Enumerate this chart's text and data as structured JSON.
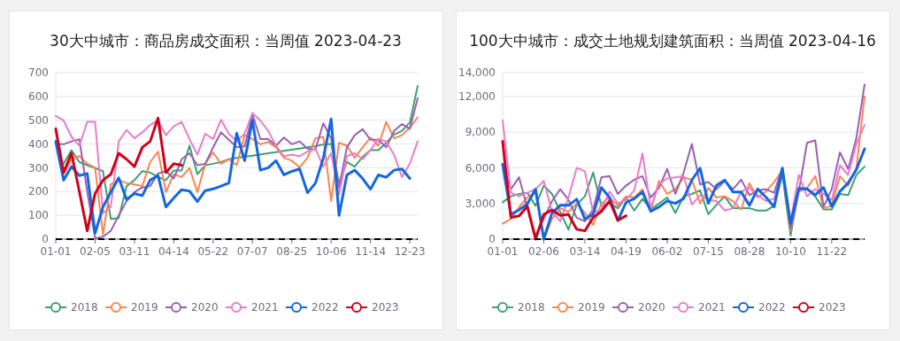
{
  "chart_data": [
    {
      "type": "line",
      "title": "30大中城市：商品房成交面积：当周值 2023-04-23",
      "categories": [
        "01-01",
        null,
        null,
        null,
        null,
        "02-05",
        null,
        null,
        null,
        null,
        "03-11",
        null,
        null,
        null,
        null,
        "04-14",
        null,
        null,
        null,
        null,
        "05-22",
        null,
        null,
        null,
        null,
        "07-07",
        null,
        null,
        null,
        null,
        "08-25",
        null,
        null,
        null,
        null,
        "10-06",
        null,
        null,
        null,
        null,
        "11-14",
        null,
        null,
        null,
        null,
        "12-23",
        null
      ],
      "ylim": [
        0,
        700
      ],
      "yticks": [
        0,
        100,
        200,
        300,
        400,
        500,
        600,
        700
      ],
      "grid": "y",
      "legend": "bottom",
      "ref_lines": [
        {
          "axis": "y",
          "value": 0,
          "color": "#000000",
          "line_style": "dashed"
        }
      ],
      "series": [
        {
          "name": "2018",
          "color": "#3ba272",
          "values": [
            null,
            317,
            374,
            324,
            311,
            299,
            286,
            85,
            88,
            223,
            248,
            286,
            280,
            261,
            248,
            289,
            289,
            393,
            273,
            311,
            317,
            324,
            336,
            342,
            346,
            351,
            356,
            361,
            366,
            371,
            376,
            381,
            386,
            391,
            398,
            400,
            236,
            324,
            305,
            346,
            374,
            374,
            405,
            440,
            455,
            490,
            644
          ]
        },
        {
          "name": "2019",
          "color": "#fc8452",
          "values": [
            null,
            273,
            336,
            349,
            317,
            300,
            20,
            230,
            248,
            236,
            230,
            223,
            324,
            368,
            198,
            273,
            261,
            299,
            198,
            317,
            365,
            317,
            336,
            311,
            437,
            420,
            399,
            409,
            386,
            342,
            330,
            302,
            342,
            424,
            430,
            160,
            405,
            393,
            342,
            386,
            427,
            393,
            493,
            424,
            437,
            468,
            512
          ]
        },
        {
          "name": "2020",
          "color": "#9a60b4",
          "values": [
            399,
            399,
            411,
            420,
            200,
            4,
            10,
            35,
            100,
            160,
            198,
            217,
            223,
            276,
            286,
            255,
            336,
            361,
            311,
            317,
            386,
            449,
            418,
            386,
            390,
            524,
            421,
            421,
            393,
            427,
            399,
            411,
            380,
            376,
            487,
            424,
            217,
            386,
            437,
            462,
            418,
            418,
            386,
            455,
            484,
            464,
            593
          ]
        },
        {
          "name": "2021",
          "color": "#ea7ccc",
          "values": [
            518,
            499,
            430,
            393,
            493,
            493,
            110,
            135,
            411,
            459,
            424,
            449,
            480,
            499,
            437,
            474,
            493,
            420,
            355,
            443,
            421,
            502,
            443,
            411,
            443,
            530,
            499,
            455,
            393,
            349,
            355,
            349,
            368,
            380,
            305,
            361,
            186,
            349,
            361,
            336,
            374,
            421,
            411,
            355,
            261,
            317,
            411
          ]
        },
        {
          "name": "2022",
          "color": "#1566e0",
          "values": [
            411,
            248,
            305,
            267,
            276,
            25,
            135,
            198,
            258,
            167,
            192,
            183,
            248,
            267,
            135,
            173,
            208,
            202,
            158,
            204,
            211,
            223,
            236,
            445,
            330,
            500,
            290,
            300,
            330,
            270,
            285,
            295,
            195,
            235,
            340,
            505,
            100,
            270,
            290,
            255,
            210,
            270,
            260,
            290,
            295,
            255,
            null
          ]
        },
        {
          "name": "2023",
          "color": "#d0021b",
          "values": [
            464,
            280,
            361,
            200,
            35,
            192,
            248,
            273,
            361,
            336,
            305,
            386,
            411,
            509,
            280,
            317,
            311,
            null,
            null,
            null,
            null,
            null,
            null,
            null,
            null,
            null,
            null,
            null,
            null,
            null,
            null,
            null,
            null,
            null,
            null,
            null,
            null,
            null,
            null,
            null,
            null,
            null,
            null,
            null,
            null,
            null,
            null
          ]
        }
      ]
    },
    {
      "type": "line",
      "title": "100大中城市：成交土地规划建筑面积：当周值 2023-04-16",
      "categories": [
        "01-01",
        null,
        null,
        null,
        null,
        "02-06",
        null,
        null,
        null,
        null,
        "03-14",
        null,
        null,
        null,
        null,
        "04-19",
        null,
        null,
        null,
        null,
        "06-02",
        null,
        null,
        null,
        null,
        "07-15",
        null,
        null,
        null,
        null,
        "08-28",
        null,
        null,
        null,
        null,
        "10-10",
        null,
        null,
        null,
        null,
        "11-22",
        null,
        null,
        null,
        null
      ],
      "ylim": [
        0,
        14000
      ],
      "yticks": [
        0,
        {
          "value": 3000,
          "label": "3,000"
        },
        {
          "value": 6000,
          "label": "6,000"
        },
        {
          "value": 9000,
          "label": "9,000"
        },
        {
          "value": 12000,
          "label": "12,000"
        },
        {
          "value": 14000,
          "label": "14,000"
        }
      ],
      "grid": "y",
      "legend": "bottom",
      "ref_lines": [
        {
          "axis": "y",
          "value": 0,
          "color": "#000000",
          "line_style": "dashed"
        }
      ],
      "series": [
        {
          "name": "2018",
          "color": "#3ba272",
          "values": [
            3100,
            3600,
            3800,
            3900,
            2800,
            4500,
            3800,
            2300,
            800,
            2900,
            3600,
            5600,
            2800,
            3000,
            2600,
            3500,
            2400,
            3400,
            2500,
            3000,
            3500,
            2200,
            3600,
            3800,
            4100,
            2100,
            2900,
            3600,
            2600,
            2600,
            2600,
            2400,
            2400,
            2800,
            5400,
            300,
            4100,
            4200,
            3600,
            2500,
            2500,
            3800,
            3700,
            5400,
            6100
          ]
        },
        {
          "name": "2019",
          "color": "#fc8452",
          "values": [
            1300,
            1700,
            2700,
            3500,
            3900,
            0,
            1700,
            2600,
            2300,
            3000,
            2200,
            1200,
            3000,
            3500,
            2800,
            3600,
            3500,
            4200,
            2400,
            4900,
            3800,
            4200,
            5200,
            5000,
            3000,
            4300,
            3500,
            3600,
            3200,
            2500,
            4700,
            3500,
            4000,
            4800,
            5800,
            700,
            4000,
            4300,
            5300,
            2600,
            2800,
            5300,
            4500,
            6000,
            12000
          ]
        },
        {
          "name": "2020",
          "color": "#9a60b4",
          "values": [
            6300,
            4200,
            5200,
            2600,
            300,
            1700,
            3200,
            4200,
            3300,
            1800,
            1500,
            2500,
            5200,
            5300,
            3800,
            4500,
            5000,
            5300,
            3500,
            4300,
            5900,
            3800,
            5600,
            8000,
            4600,
            4800,
            4200,
            4900,
            4200,
            5000,
            3700,
            4100,
            4200,
            3900,
            6000,
            900,
            4000,
            8100,
            8300,
            2700,
            4200,
            7300,
            5900,
            8500,
            13000
          ]
        },
        {
          "name": "2021",
          "color": "#ea7ccc",
          "values": [
            10000,
            3900,
            3600,
            3900,
            4200,
            4900,
            2300,
            1500,
            3500,
            6000,
            5700,
            2200,
            2500,
            4000,
            3000,
            3300,
            4100,
            7200,
            2600,
            4600,
            5100,
            5200,
            5300,
            2900,
            3700,
            3300,
            3200,
            2400,
            2600,
            4000,
            4300,
            3700,
            3200,
            3400,
            5700,
            1500,
            5400,
            3600,
            4200,
            3800,
            3300,
            6200,
            5400,
            8000,
            9600
          ]
        },
        {
          "name": "2022",
          "color": "#1566e0",
          "values": [
            6300,
            2080,
            2460,
            2960,
            4200,
            0,
            2210,
            2840,
            2840,
            3360,
            1690,
            2080,
            4340,
            3500,
            1560,
            3090,
            3400,
            3970,
            2330,
            2710,
            3210,
            3010,
            3410,
            4970,
            5970,
            3010,
            4520,
            4970,
            3960,
            3960,
            2840,
            4220,
            3540,
            2710,
            5970,
            1330,
            4270,
            4220,
            3710,
            4340,
            2760,
            4010,
            4720,
            5850,
            7600
          ]
        },
        {
          "name": "2023",
          "color": "#d0021b",
          "values": [
            8230,
            1830,
            1960,
            2760,
            0,
            2080,
            2460,
            2000,
            2080,
            830,
            700,
            1830,
            2330,
            3210,
            1580,
            1960,
            null,
            null,
            null,
            null,
            null,
            null,
            null,
            null,
            null,
            null,
            null,
            null,
            null,
            null,
            null,
            null,
            null,
            null,
            null,
            null,
            null,
            null,
            null,
            null,
            null,
            null,
            null,
            null,
            null
          ]
        }
      ]
    }
  ]
}
